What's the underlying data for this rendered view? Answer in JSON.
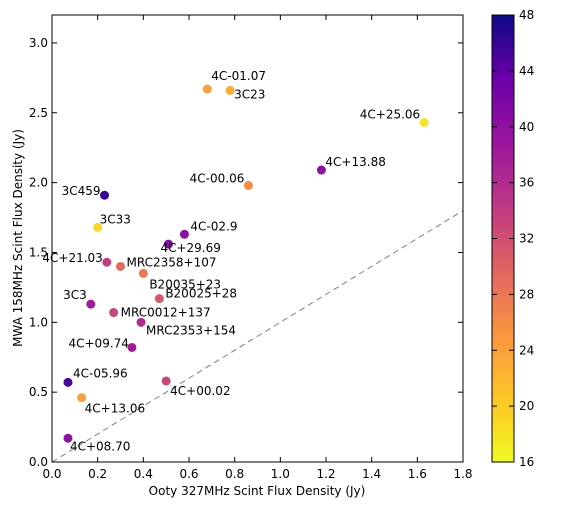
{
  "chart_data": {
    "type": "scatter",
    "title": "",
    "xlabel": "Ooty 327MHz Scint Flux Density (Jy)",
    "ylabel": "MWA 158MHz Scint Flux Density (Jy)",
    "xlim": [
      0.0,
      1.8
    ],
    "ylim": [
      0.0,
      3.2
    ],
    "xticks": [
      "0.0",
      "0.2",
      "0.4",
      "0.6",
      "0.8",
      "1.0",
      "1.2",
      "1.4",
      "1.6",
      "1.8"
    ],
    "yticks": [
      "0.0",
      "0.5",
      "1.0",
      "1.5",
      "2.0",
      "2.5",
      "3.0"
    ],
    "grid": false,
    "reference_line": "y = x (dashed gray)",
    "colorbar": {
      "range": [
        16,
        48
      ],
      "ticks": [
        "16",
        "20",
        "24",
        "28",
        "32",
        "36",
        "40",
        "44",
        "48"
      ],
      "colormap": "plasma"
    },
    "points": [
      {
        "label": "4C-01.07",
        "x": 0.68,
        "y": 2.67,
        "c": 24
      },
      {
        "label": "3C23",
        "x": 0.78,
        "y": 2.66,
        "c": 23
      },
      {
        "label": "4C+25.06",
        "x": 1.63,
        "y": 2.43,
        "c": 18
      },
      {
        "label": "4C+13.88",
        "x": 1.18,
        "y": 2.09,
        "c": 40
      },
      {
        "label": "4C-00.06",
        "x": 0.86,
        "y": 1.98,
        "c": 26
      },
      {
        "label": "3C459",
        "x": 0.23,
        "y": 1.91,
        "c": 46
      },
      {
        "label": "3C33",
        "x": 0.2,
        "y": 1.68,
        "c": 19
      },
      {
        "label": "4C-02.9",
        "x": 0.58,
        "y": 1.63,
        "c": 40
      },
      {
        "label": "4C+29.69",
        "x": 0.51,
        "y": 1.56,
        "c": 41
      },
      {
        "label": "4C+21.03",
        "x": 0.24,
        "y": 1.43,
        "c": 34
      },
      {
        "label": "MRC2358+107",
        "x": 0.3,
        "y": 1.4,
        "c": 29
      },
      {
        "label": "B20035+23",
        "x": 0.4,
        "y": 1.35,
        "c": 28
      },
      {
        "label": "3C3",
        "x": 0.17,
        "y": 1.13,
        "c": 38
      },
      {
        "label": "B20025+28",
        "x": 0.47,
        "y": 1.17,
        "c": 31
      },
      {
        "label": "MRC0012+137",
        "x": 0.27,
        "y": 1.07,
        "c": 33
      },
      {
        "label": "MRC2353+154",
        "x": 0.39,
        "y": 1.0,
        "c": 36
      },
      {
        "label": "4C+09.74",
        "x": 0.35,
        "y": 0.82,
        "c": 38
      },
      {
        "label": "4C-05.96",
        "x": 0.07,
        "y": 0.57,
        "c": 45
      },
      {
        "label": "4C+00.02",
        "x": 0.5,
        "y": 0.58,
        "c": 33
      },
      {
        "label": "4C+13.06",
        "x": 0.13,
        "y": 0.46,
        "c": 24
      },
      {
        "label": "4C+08.70",
        "x": 0.07,
        "y": 0.17,
        "c": 40
      }
    ]
  }
}
